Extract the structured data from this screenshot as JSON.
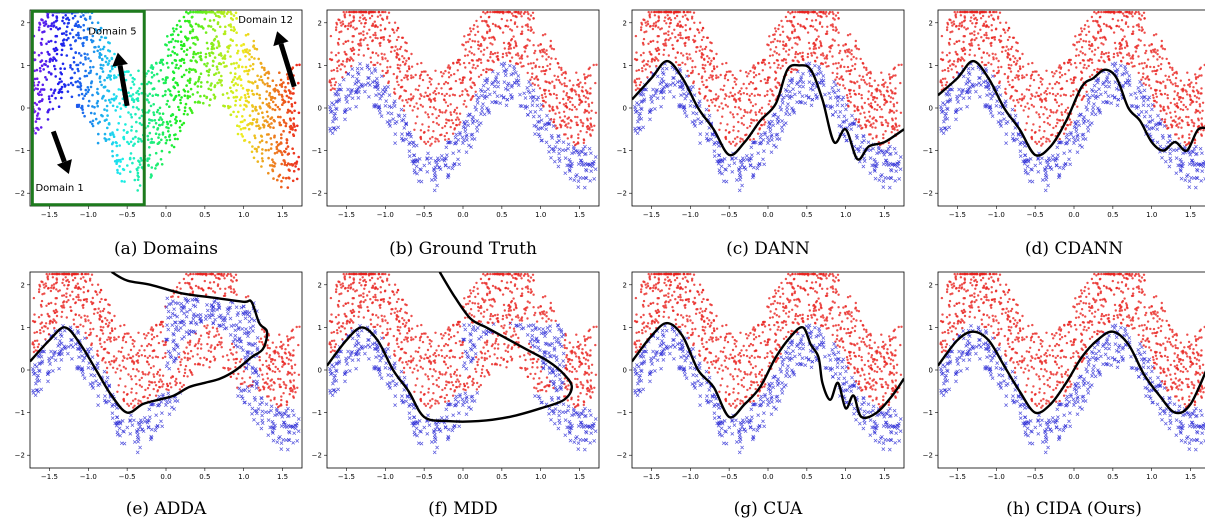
{
  "figure": {
    "axis_xlim": [
      -1.75,
      1.75
    ],
    "axis_ylim": [
      -2.3,
      2.3
    ],
    "x_ticks": [
      -1.5,
      -1.0,
      -0.5,
      0.0,
      0.5,
      1.0,
      1.5
    ],
    "x_tick_labels": [
      "−1.5",
      "−1.0",
      "−0.5",
      "0.0",
      "0.5",
      "1.0",
      "1.5"
    ],
    "y_ticks": [
      -2,
      -1,
      0,
      1,
      2
    ],
    "y_tick_labels": [
      "−2",
      "−1",
      "0",
      "1",
      "2"
    ],
    "class_colors": {
      "positive": "#e8231f",
      "negative": "#2b2bd6"
    },
    "boundary_color": "#000000",
    "domain_box_color": "#1d7a1d",
    "panels": [
      {
        "key": "a",
        "caption": "(a) Domains",
        "kind": "domains"
      },
      {
        "key": "b",
        "caption": "(b) Ground Truth",
        "kind": "classes"
      },
      {
        "key": "c",
        "caption": "(c) DANN",
        "kind": "classes"
      },
      {
        "key": "d",
        "caption": "(d) CDANN",
        "kind": "classes"
      },
      {
        "key": "e",
        "caption": "(e) ADDA",
        "kind": "classes"
      },
      {
        "key": "f",
        "caption": "(f) MDD",
        "kind": "classes"
      },
      {
        "key": "g",
        "caption": "(g) CUA",
        "kind": "classes"
      },
      {
        "key": "h",
        "caption": "(h) CIDA (Ours)",
        "kind": "classes"
      }
    ],
    "annotations": {
      "domain1": "Domain 1",
      "domain5": "Domain 5",
      "domain12": "Domain 12"
    }
  },
  "chart_data": {
    "type": "scatter",
    "series": [
      {
        "name": "positive",
        "marker": "dot"
      },
      {
        "name": "negative",
        "marker": "x"
      }
    ],
    "data_band": {
      "y_center_formula": "sin(3.4*(x+1.75)) + 0.5",
      "half_width": 1.35
    },
    "ground_truth_boundary": {
      "x": [
        -1.75,
        -1.5,
        -1.25,
        -1.0,
        -0.75,
        -0.5,
        -0.25,
        0.0,
        0.25,
        0.5,
        0.75,
        1.0,
        1.25,
        1.5,
        1.75
      ],
      "y": [
        0.1,
        0.9,
        1.0,
        0.3,
        -0.5,
        -1.1,
        -0.8,
        0.0,
        0.8,
        1.1,
        0.5,
        -0.4,
        -1.0,
        -0.8,
        0.2
      ]
    },
    "boundaries": {
      "c": {
        "x": [
          -1.75,
          -1.5,
          -1.3,
          -1.1,
          -0.9,
          -0.7,
          -0.5,
          -0.3,
          -0.1,
          0.1,
          0.25,
          0.4,
          0.55,
          0.7,
          0.85,
          1.0,
          1.15,
          1.3,
          1.5,
          1.75
        ],
        "y": [
          0.2,
          0.7,
          1.1,
          0.7,
          0.0,
          -0.5,
          -1.1,
          -0.8,
          -0.3,
          0.1,
          0.9,
          1.0,
          0.9,
          0.2,
          -0.8,
          -0.5,
          -1.2,
          -0.9,
          -0.8,
          -0.5
        ]
      },
      "d": {
        "x": [
          -1.75,
          -1.5,
          -1.3,
          -1.1,
          -0.9,
          -0.7,
          -0.5,
          -0.3,
          -0.1,
          0.1,
          0.25,
          0.4,
          0.55,
          0.7,
          0.85,
          1.0,
          1.15,
          1.3,
          1.45,
          1.6,
          1.75
        ],
        "y": [
          0.3,
          0.7,
          1.1,
          0.7,
          0.0,
          -0.5,
          -1.1,
          -0.9,
          -0.3,
          0.5,
          0.7,
          0.9,
          0.7,
          0.0,
          -0.3,
          -0.8,
          -1.0,
          -0.8,
          -1.0,
          -0.5,
          -0.5
        ]
      },
      "e": {
        "x": [
          -1.75,
          -1.5,
          -1.3,
          -1.1,
          -0.9,
          -0.7,
          -0.5,
          -0.3,
          -0.1,
          0.1,
          0.3,
          0.5,
          0.7,
          0.9,
          1.1,
          1.25,
          1.3,
          1.2,
          1.1,
          1.0,
          0.6,
          0.2,
          -0.2,
          -0.5,
          -0.7
        ],
        "y": [
          0.2,
          0.7,
          1.0,
          0.6,
          0.0,
          -0.6,
          -1.0,
          -0.8,
          -0.7,
          -0.6,
          -0.4,
          -0.3,
          -0.2,
          0.0,
          0.3,
          0.5,
          0.9,
          1.1,
          1.6,
          1.6,
          1.7,
          1.8,
          2.0,
          2.1,
          2.3
        ]
      },
      "f": {
        "x": [
          -1.75,
          -1.5,
          -1.3,
          -1.1,
          -0.9,
          -0.7,
          -0.5,
          -0.2,
          0.2,
          0.6,
          1.0,
          1.3,
          1.4,
          1.3,
          1.1,
          0.8,
          0.5,
          0.3,
          0.1,
          -0.1,
          -0.3
        ],
        "y": [
          0.1,
          0.7,
          1.0,
          0.7,
          0.0,
          -0.5,
          -1.1,
          -1.2,
          -1.2,
          -1.1,
          -0.9,
          -0.7,
          -0.4,
          -0.1,
          0.2,
          0.5,
          0.8,
          1.0,
          1.2,
          1.7,
          2.3
        ]
      },
      "g": {
        "x": [
          -1.75,
          -1.5,
          -1.3,
          -1.1,
          -0.9,
          -0.7,
          -0.5,
          -0.3,
          -0.1,
          0.1,
          0.3,
          0.45,
          0.55,
          0.65,
          0.7,
          0.8,
          0.9,
          1.0,
          1.1,
          1.2,
          1.4,
          1.6,
          1.75
        ],
        "y": [
          0.2,
          0.8,
          1.1,
          0.8,
          0.0,
          -0.4,
          -1.1,
          -0.8,
          -0.4,
          0.3,
          0.8,
          1.0,
          0.6,
          0.3,
          -0.3,
          -0.7,
          -0.3,
          -0.9,
          -0.6,
          -1.1,
          -1.0,
          -0.6,
          -0.2
        ]
      },
      "h": {
        "x": [
          -1.75,
          -1.5,
          -1.3,
          -1.1,
          -0.9,
          -0.7,
          -0.5,
          -0.3,
          -0.1,
          0.1,
          0.3,
          0.5,
          0.7,
          0.9,
          1.1,
          1.3,
          1.5,
          1.75
        ],
        "y": [
          0.1,
          0.7,
          0.9,
          0.7,
          0.1,
          -0.5,
          -1.0,
          -0.8,
          -0.3,
          0.3,
          0.7,
          0.9,
          0.6,
          -0.1,
          -0.6,
          -1.0,
          -0.8,
          0.2
        ]
      }
    }
  }
}
